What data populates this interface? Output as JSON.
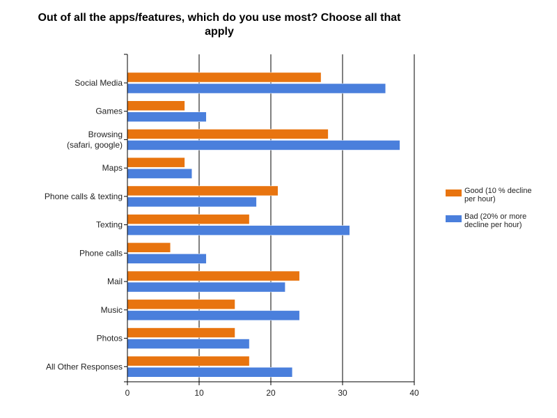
{
  "chart_data": {
    "type": "bar",
    "orientation": "horizontal",
    "title": "Out of all the apps/features, which do you use most? Choose all that apply",
    "xlabel": "",
    "ylabel": "",
    "xlim": [
      0,
      40
    ],
    "x_ticks": [
      0,
      10,
      20,
      30,
      40
    ],
    "grid": true,
    "legend_position": "right",
    "categories": [
      [
        "Social Media"
      ],
      [
        "Games"
      ],
      [
        "Browsing",
        "(safari, google)"
      ],
      [
        "Maps"
      ],
      [
        "Phone calls & texting"
      ],
      [
        "Texting"
      ],
      [
        "Phone calls"
      ],
      [
        "Mail"
      ],
      [
        "Music"
      ],
      [
        "Photos"
      ],
      [
        "All Other Responses"
      ]
    ],
    "series": [
      {
        "name": "Good (10 % decline per hour)",
        "legend_lines": [
          "Good (10 % decline",
          "per hour)"
        ],
        "color": "#E8740F",
        "values": [
          27,
          8,
          28,
          8,
          21,
          17,
          6,
          24,
          15,
          15,
          17
        ]
      },
      {
        "name": "Bad (20% or more decline per hour)",
        "legend_lines": [
          "Bad (20% or more",
          "decline per hour)"
        ],
        "color": "#4A7FDC",
        "values": [
          36,
          11,
          38,
          9,
          18,
          31,
          11,
          22,
          24,
          17,
          23
        ]
      }
    ]
  }
}
